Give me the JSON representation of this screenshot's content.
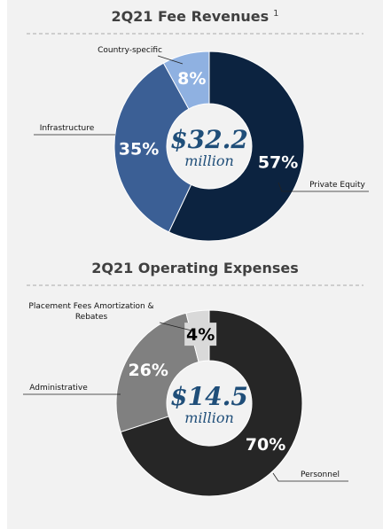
{
  "chart_data": [
    {
      "type": "donut",
      "title": "2Q21 Fee Revenues",
      "title_superscript": "1",
      "center_value": "$32.2",
      "center_unit": "million",
      "categories": [
        "Private Equity",
        "Infrastructure",
        "Country-specific"
      ],
      "values": [
        57,
        35,
        8
      ],
      "value_labels": [
        "57%",
        "35%",
        "8%"
      ],
      "colors": [
        "#0c2340",
        "#3b5f95",
        "#8fb1e1"
      ],
      "value_label_colors": [
        "#ffffff",
        "#ffffff",
        "#ffffff"
      ]
    },
    {
      "type": "donut",
      "title": "2Q21 Operating Expenses",
      "center_value": "$14.5",
      "center_unit": "million",
      "categories": [
        "Personnel",
        "Administrative",
        "Placement Fees Amortization & Rebates"
      ],
      "values": [
        70,
        26,
        4
      ],
      "value_labels": [
        "70%",
        "26%",
        "4%"
      ],
      "colors": [
        "#262626",
        "#808080",
        "#d9d9d9"
      ],
      "value_label_colors": [
        "#ffffff",
        "#ffffff",
        "#000000"
      ]
    }
  ]
}
